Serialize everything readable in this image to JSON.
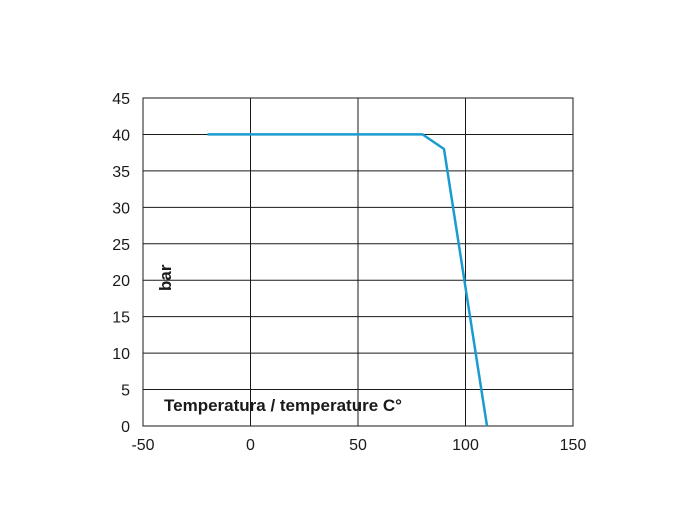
{
  "chart_data": {
    "type": "line",
    "title": "",
    "xlabel": "Temperatura / temperature C°",
    "ylabel": "bar",
    "xlim": [
      -50,
      150
    ],
    "ylim": [
      0,
      45
    ],
    "xticks": [
      -50,
      0,
      50,
      100,
      150
    ],
    "yticks": [
      0,
      5,
      10,
      15,
      20,
      25,
      30,
      35,
      40,
      45
    ],
    "grid": true,
    "series": [
      {
        "color": "#1a9bd0",
        "x": [
          -20,
          80,
          90,
          110
        ],
        "y": [
          40,
          40,
          38,
          0
        ]
      }
    ]
  }
}
